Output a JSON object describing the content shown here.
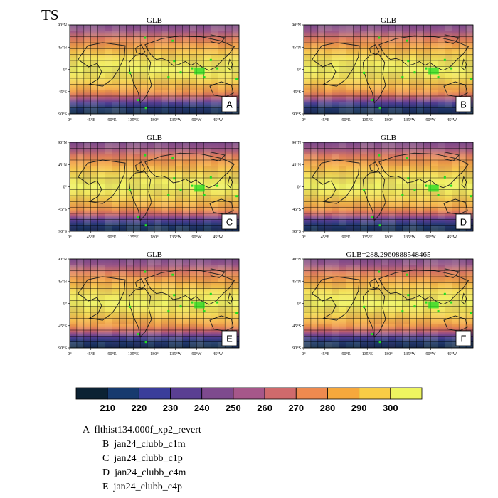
{
  "page": {
    "title": "TS"
  },
  "chart_data": {
    "type": "heatmap",
    "variable": "TS",
    "lat_ticks": [
      "90°N",
      "45°N",
      "0°",
      "45°S",
      "90°S"
    ],
    "lon_ticks": [
      "0°",
      "45°E",
      "90°E",
      "135°E",
      "180°",
      "135°W",
      "90°W",
      "45°W"
    ],
    "panels": [
      {
        "letter": "A",
        "title": "GLB",
        "legend": "A  flthist134.000f_xp2_revert"
      },
      {
        "letter": "B",
        "title": "GLB",
        "legend": "B  jan24_clubb_c1m"
      },
      {
        "letter": "C",
        "title": "GLB",
        "legend": "C  jan24_clubb_c1p"
      },
      {
        "letter": "D",
        "title": "GLB",
        "legend": "D  jan24_clubb_c4m"
      },
      {
        "letter": "E",
        "title": "GLB",
        "legend": "E  jan24_clubb_c4p"
      },
      {
        "letter": "F",
        "title": "GLB=288.2960888548465",
        "legend": ""
      }
    ],
    "colorbar": {
      "labels": [
        "210",
        "220",
        "230",
        "240",
        "250",
        "260",
        "270",
        "280",
        "290",
        "300"
      ],
      "colors": [
        "#0c2233",
        "#173a6e",
        "#3a3d9a",
        "#5a3f92",
        "#7e4a8e",
        "#a6578a",
        "#cf6a6c",
        "#ee8a4f",
        "#f6a83c",
        "#f8cd45",
        "#eef560"
      ]
    },
    "marker_color": "#22dd22"
  }
}
